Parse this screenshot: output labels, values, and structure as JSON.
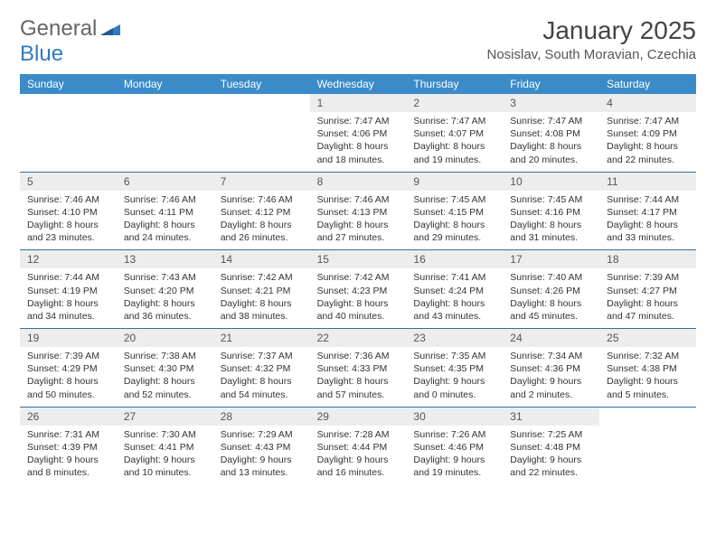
{
  "logo": {
    "text1": "General",
    "text2": "Blue"
  },
  "title": "January 2025",
  "location": "Nosislav, South Moravian, Czechia",
  "header_bg": "#3b8bc9",
  "rule_color": "#2f6fa8",
  "day_headers": [
    "Sunday",
    "Monday",
    "Tuesday",
    "Wednesday",
    "Thursday",
    "Friday",
    "Saturday"
  ],
  "weeks": [
    [
      {
        "n": "",
        "sr": "",
        "ss": "",
        "dl": ""
      },
      {
        "n": "",
        "sr": "",
        "ss": "",
        "dl": ""
      },
      {
        "n": "",
        "sr": "",
        "ss": "",
        "dl": ""
      },
      {
        "n": "1",
        "sr": "Sunrise: 7:47 AM",
        "ss": "Sunset: 4:06 PM",
        "dl": "Daylight: 8 hours and 18 minutes."
      },
      {
        "n": "2",
        "sr": "Sunrise: 7:47 AM",
        "ss": "Sunset: 4:07 PM",
        "dl": "Daylight: 8 hours and 19 minutes."
      },
      {
        "n": "3",
        "sr": "Sunrise: 7:47 AM",
        "ss": "Sunset: 4:08 PM",
        "dl": "Daylight: 8 hours and 20 minutes."
      },
      {
        "n": "4",
        "sr": "Sunrise: 7:47 AM",
        "ss": "Sunset: 4:09 PM",
        "dl": "Daylight: 8 hours and 22 minutes."
      }
    ],
    [
      {
        "n": "5",
        "sr": "Sunrise: 7:46 AM",
        "ss": "Sunset: 4:10 PM",
        "dl": "Daylight: 8 hours and 23 minutes."
      },
      {
        "n": "6",
        "sr": "Sunrise: 7:46 AM",
        "ss": "Sunset: 4:11 PM",
        "dl": "Daylight: 8 hours and 24 minutes."
      },
      {
        "n": "7",
        "sr": "Sunrise: 7:46 AM",
        "ss": "Sunset: 4:12 PM",
        "dl": "Daylight: 8 hours and 26 minutes."
      },
      {
        "n": "8",
        "sr": "Sunrise: 7:46 AM",
        "ss": "Sunset: 4:13 PM",
        "dl": "Daylight: 8 hours and 27 minutes."
      },
      {
        "n": "9",
        "sr": "Sunrise: 7:45 AM",
        "ss": "Sunset: 4:15 PM",
        "dl": "Daylight: 8 hours and 29 minutes."
      },
      {
        "n": "10",
        "sr": "Sunrise: 7:45 AM",
        "ss": "Sunset: 4:16 PM",
        "dl": "Daylight: 8 hours and 31 minutes."
      },
      {
        "n": "11",
        "sr": "Sunrise: 7:44 AM",
        "ss": "Sunset: 4:17 PM",
        "dl": "Daylight: 8 hours and 33 minutes."
      }
    ],
    [
      {
        "n": "12",
        "sr": "Sunrise: 7:44 AM",
        "ss": "Sunset: 4:19 PM",
        "dl": "Daylight: 8 hours and 34 minutes."
      },
      {
        "n": "13",
        "sr": "Sunrise: 7:43 AM",
        "ss": "Sunset: 4:20 PM",
        "dl": "Daylight: 8 hours and 36 minutes."
      },
      {
        "n": "14",
        "sr": "Sunrise: 7:42 AM",
        "ss": "Sunset: 4:21 PM",
        "dl": "Daylight: 8 hours and 38 minutes."
      },
      {
        "n": "15",
        "sr": "Sunrise: 7:42 AM",
        "ss": "Sunset: 4:23 PM",
        "dl": "Daylight: 8 hours and 40 minutes."
      },
      {
        "n": "16",
        "sr": "Sunrise: 7:41 AM",
        "ss": "Sunset: 4:24 PM",
        "dl": "Daylight: 8 hours and 43 minutes."
      },
      {
        "n": "17",
        "sr": "Sunrise: 7:40 AM",
        "ss": "Sunset: 4:26 PM",
        "dl": "Daylight: 8 hours and 45 minutes."
      },
      {
        "n": "18",
        "sr": "Sunrise: 7:39 AM",
        "ss": "Sunset: 4:27 PM",
        "dl": "Daylight: 8 hours and 47 minutes."
      }
    ],
    [
      {
        "n": "19",
        "sr": "Sunrise: 7:39 AM",
        "ss": "Sunset: 4:29 PM",
        "dl": "Daylight: 8 hours and 50 minutes."
      },
      {
        "n": "20",
        "sr": "Sunrise: 7:38 AM",
        "ss": "Sunset: 4:30 PM",
        "dl": "Daylight: 8 hours and 52 minutes."
      },
      {
        "n": "21",
        "sr": "Sunrise: 7:37 AM",
        "ss": "Sunset: 4:32 PM",
        "dl": "Daylight: 8 hours and 54 minutes."
      },
      {
        "n": "22",
        "sr": "Sunrise: 7:36 AM",
        "ss": "Sunset: 4:33 PM",
        "dl": "Daylight: 8 hours and 57 minutes."
      },
      {
        "n": "23",
        "sr": "Sunrise: 7:35 AM",
        "ss": "Sunset: 4:35 PM",
        "dl": "Daylight: 9 hours and 0 minutes."
      },
      {
        "n": "24",
        "sr": "Sunrise: 7:34 AM",
        "ss": "Sunset: 4:36 PM",
        "dl": "Daylight: 9 hours and 2 minutes."
      },
      {
        "n": "25",
        "sr": "Sunrise: 7:32 AM",
        "ss": "Sunset: 4:38 PM",
        "dl": "Daylight: 9 hours and 5 minutes."
      }
    ],
    [
      {
        "n": "26",
        "sr": "Sunrise: 7:31 AM",
        "ss": "Sunset: 4:39 PM",
        "dl": "Daylight: 9 hours and 8 minutes."
      },
      {
        "n": "27",
        "sr": "Sunrise: 7:30 AM",
        "ss": "Sunset: 4:41 PM",
        "dl": "Daylight: 9 hours and 10 minutes."
      },
      {
        "n": "28",
        "sr": "Sunrise: 7:29 AM",
        "ss": "Sunset: 4:43 PM",
        "dl": "Daylight: 9 hours and 13 minutes."
      },
      {
        "n": "29",
        "sr": "Sunrise: 7:28 AM",
        "ss": "Sunset: 4:44 PM",
        "dl": "Daylight: 9 hours and 16 minutes."
      },
      {
        "n": "30",
        "sr": "Sunrise: 7:26 AM",
        "ss": "Sunset: 4:46 PM",
        "dl": "Daylight: 9 hours and 19 minutes."
      },
      {
        "n": "31",
        "sr": "Sunrise: 7:25 AM",
        "ss": "Sunset: 4:48 PM",
        "dl": "Daylight: 9 hours and 22 minutes."
      },
      {
        "n": "",
        "sr": "",
        "ss": "",
        "dl": ""
      }
    ]
  ]
}
